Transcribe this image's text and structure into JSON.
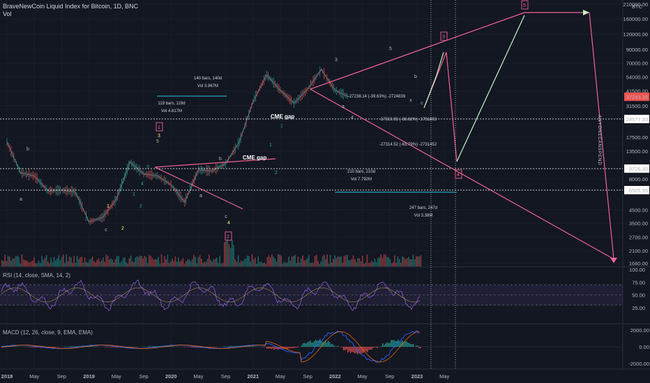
{
  "header": {
    "title": "BraveNewCoin Liquid Index for Bitcoin, 1D, BNC",
    "vol_label": "Vol"
  },
  "colors": {
    "background": "#131722",
    "up": "#26a69a",
    "down": "#ef5350",
    "pink": "#f06292",
    "cyan": "#26c6da",
    "green_arrow": "#c8f7c5",
    "rsi_line": "#7e57c2",
    "macd_line": "#2962ff",
    "signal_line": "#ff6d00"
  },
  "price_pane": {
    "currency": "BTC",
    "price_ticks": [
      "210000.00",
      "160000.00",
      "120000.00",
      "90000.00",
      "70000.00",
      "54000.00",
      "41500.00",
      "31500.00",
      "24577.33",
      "17500.00",
      "13500.00",
      "9726.30",
      "8000.00",
      "6505.95",
      "4500.00",
      "3500.00",
      "2700.00",
      "2100.00",
      "1660.00"
    ],
    "current_price_label": "37243.35",
    "level_labels": [
      "24577.33",
      "9726.30",
      "6505.95"
    ],
    "vertical_label": "ANYONECANSPEND",
    "cme_gap_labels": [
      "CME gap",
      "CME gap"
    ],
    "measure_boxes": [
      {
        "bars": "140 bars, 140d",
        "vol": "Vol 3.967M"
      },
      {
        "bars": "119 bars, 119d",
        "vol": "Vol 4.817M"
      },
      {
        "bars": "210 bars, 210d",
        "vol": "Vol 7.792M"
      },
      {
        "bars": "247 bars, 247d",
        "vol": "Vol 3.38M"
      }
    ],
    "pct_labels": [
      "-27238.14 (-39.63%) -2724839",
      "-17318.93 (-38.62%) -1751803",
      "-27314.52 (-63.79%) -2731452"
    ],
    "wave_numbers": [
      "1",
      "2",
      "3",
      "4",
      "5"
    ],
    "wave_small": [
      "1",
      "2",
      "3",
      "4",
      "5",
      "a",
      "b",
      "c",
      "d",
      "e",
      "x"
    ]
  },
  "rsi_pane": {
    "label": "RSI (14, close, SMA, 14, 2)",
    "ticks": [
      "100.00",
      "75.00",
      "50.00",
      "25.00"
    ],
    "upper": 70,
    "lower": 30
  },
  "macd_pane": {
    "label": "MACD (12, 26, close, 9, EMA, EMA)",
    "ticks": [
      "2000.00",
      "0.00",
      "-2000.00"
    ]
  },
  "time_axis": {
    "labels": [
      "2018",
      "May",
      "Sep",
      "2019",
      "May",
      "Sep",
      "2020",
      "May",
      "Sep",
      "2021",
      "May",
      "Sep",
      "2022",
      "May",
      "Sep",
      "2023",
      "May"
    ]
  },
  "chart_data": {
    "type": "line",
    "title": "BraveNewCoin Liquid Index for Bitcoin, 1D, BNC",
    "y_scale": "log",
    "ylim": [
      1660,
      210000
    ],
    "x": [
      "2018-01",
      "2018-03",
      "2018-05",
      "2018-07",
      "2018-09",
      "2018-11",
      "2019-01",
      "2019-03",
      "2019-05",
      "2019-07",
      "2019-09",
      "2019-11",
      "2020-01",
      "2020-03",
      "2020-05",
      "2020-07",
      "2020-09",
      "2020-11",
      "2021-01",
      "2021-03",
      "2021-05",
      "2021-07",
      "2021-09",
      "2021-11",
      "2022-01",
      "2022-03"
    ],
    "series": [
      {
        "values": [
          16000,
          9000,
          8500,
          6400,
          6500,
          6300,
          3600,
          3900,
          5500,
          11000,
          8800,
          8500,
          7200,
          5200,
          9500,
          9300,
          10700,
          16000,
          34000,
          56000,
          42000,
          33000,
          43000,
          62000,
          42000,
          37243
        ]
      }
    ],
    "levels": [
      24577.33,
      9726.3,
      6505.95
    ]
  }
}
